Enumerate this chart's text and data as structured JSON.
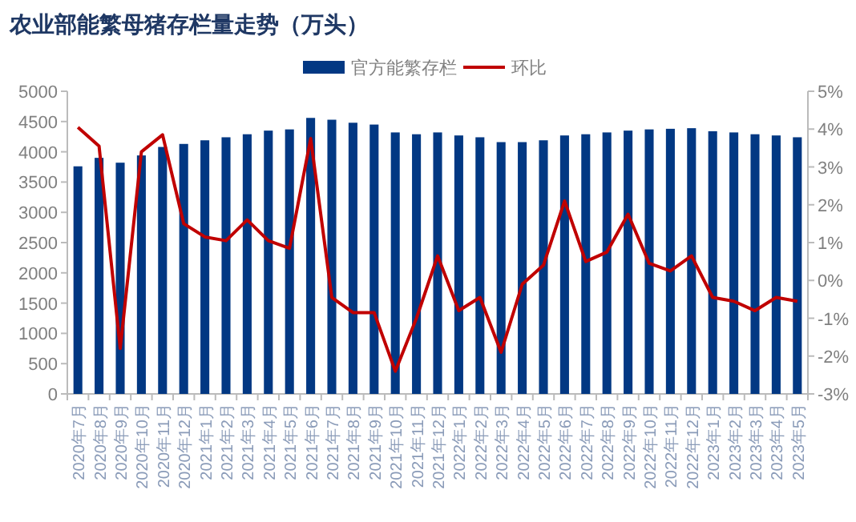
{
  "chart_data": {
    "type": "bar",
    "title": "农业部能繁母猪存栏量走势（万头）",
    "legend": "top",
    "grid": false,
    "categories": [
      "2020年7月",
      "2020年8月",
      "2020年9月",
      "2020年10月",
      "2020年11月",
      "2020年12月",
      "2021年1月",
      "2021年2月",
      "2021年3月",
      "2021年4月",
      "2021年5月",
      "2021年6月",
      "2021年7月",
      "2021年8月",
      "2021年9月",
      "2021年10月",
      "2021年11月",
      "2021年12月",
      "2022年1月",
      "2022年2月",
      "2022年3月",
      "2022年4月",
      "2022年5月",
      "2022年6月",
      "2022年7月",
      "2022年8月",
      "2022年9月",
      "2022年10月",
      "2022年11月",
      "2022年12月",
      "2023年1月",
      "2023年2月",
      "2023年3月",
      "2023年4月",
      "2023年5月"
    ],
    "series": [
      {
        "name": "官方能繁存栏",
        "color": "#023883",
        "values": [
          3760,
          3900,
          3820,
          3940,
          4080,
          4130,
          4190,
          4240,
          4290,
          4350,
          4370,
          4560,
          4530,
          4480,
          4450,
          4320,
          4290,
          4320,
          4270,
          4240,
          4160,
          4160,
          4190,
          4270,
          4290,
          4320,
          4350,
          4370,
          4380,
          4390,
          4340,
          4320,
          4290,
          4270,
          4240
        ]
      },
      {
        "name": "环比",
        "type": "line",
        "axis": "y2",
        "color": "#c00000",
        "values": [
          4.05,
          3.55,
          -1.8,
          3.4,
          3.85,
          1.5,
          1.15,
          1.05,
          1.6,
          1.05,
          0.85,
          3.75,
          -0.45,
          -0.85,
          -0.85,
          -2.4,
          -1.0,
          0.65,
          -0.8,
          -0.45,
          -1.9,
          -0.1,
          0.4,
          2.1,
          0.5,
          0.75,
          1.75,
          0.45,
          0.25,
          0.65,
          -0.45,
          -0.55,
          -0.8,
          -0.45,
          -0.55
        ]
      }
    ],
    "ylim": [
      0,
      5000
    ],
    "yticks": [
      0,
      500,
      1000,
      1500,
      2000,
      2500,
      3000,
      3500,
      4000,
      4500,
      5000
    ],
    "y2lim": [
      -3,
      5
    ],
    "y2ticks": [
      {
        "value": -3,
        "label": "-3%"
      },
      {
        "value": -2,
        "label": "-2%"
      },
      {
        "value": -1,
        "label": "-1%"
      },
      {
        "value": 0,
        "label": "0%"
      },
      {
        "value": 1,
        "label": "1%"
      },
      {
        "value": 2,
        "label": "2%"
      },
      {
        "value": 3,
        "label": "3%"
      },
      {
        "value": 4,
        "label": "4%"
      },
      {
        "value": 5,
        "label": "5%"
      }
    ]
  }
}
